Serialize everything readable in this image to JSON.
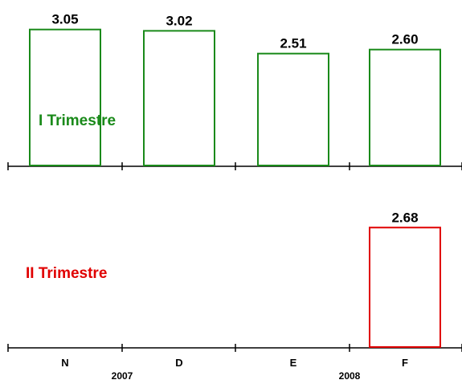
{
  "chart_data": [
    {
      "type": "bar",
      "title": "I Trimestre",
      "categories": [
        "N",
        "D",
        "E",
        "F"
      ],
      "values": [
        3.05,
        3.02,
        2.51,
        2.6
      ],
      "value_labels": [
        "3.05",
        "3.02",
        "2.51",
        "2.60"
      ],
      "color": "#1a8a1a",
      "bar_fill": "#ffffff",
      "grid": false
    },
    {
      "type": "bar",
      "title": "II Trimestre",
      "categories": [
        "N",
        "D",
        "E",
        "F"
      ],
      "values": [
        null,
        null,
        null,
        2.68
      ],
      "value_labels": [
        "",
        "",
        "",
        "2.68"
      ],
      "color": "#e00000",
      "bar_fill": "#ffffff",
      "grid": false
    }
  ],
  "x_axis": {
    "categories": [
      "N",
      "D",
      "E",
      "F"
    ],
    "years": [
      "2007",
      "2008"
    ]
  }
}
